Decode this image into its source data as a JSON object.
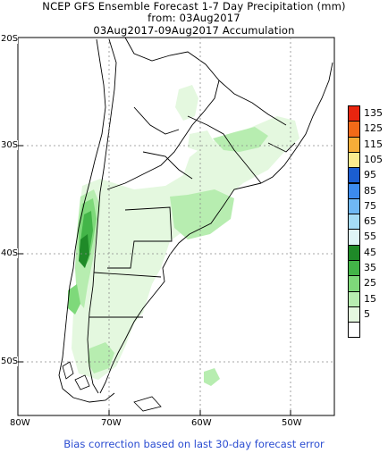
{
  "title": {
    "line1": "NCEP GFS Ensemble Forecast 1-7 Day Precipitation (mm)",
    "line2": "from: 03Aug2017",
    "line3": "03Aug2017-09Aug2017 Accumulation"
  },
  "axes": {
    "lat_labels": [
      "20S",
      "30S",
      "40S",
      "50S"
    ],
    "lon_labels": [
      "80W",
      "70W",
      "60W",
      "50W"
    ]
  },
  "legend": {
    "levels": [
      {
        "label": "135",
        "color": "#e8250f"
      },
      {
        "label": "125",
        "color": "#f26a18"
      },
      {
        "label": "115",
        "color": "#f6ad38"
      },
      {
        "label": "105",
        "color": "#faea8e"
      },
      {
        "label": "95",
        "color": "#1b5ed1"
      },
      {
        "label": "85",
        "color": "#3c8bee"
      },
      {
        "label": "75",
        "color": "#6fb8f5"
      },
      {
        "label": "65",
        "color": "#a6dcf6"
      },
      {
        "label": "55",
        "color": "#dff5f7"
      },
      {
        "label": "45",
        "color": "#1f8a28"
      },
      {
        "label": "35",
        "color": "#43b548"
      },
      {
        "label": "25",
        "color": "#7ed97a"
      },
      {
        "label": "15",
        "color": "#b7edb0"
      },
      {
        "label": "5",
        "color": "#e4f8df"
      },
      {
        "label": "",
        "color": "#ffffff"
      }
    ]
  },
  "footer": "Bias correction based on last 30-day forecast error"
}
